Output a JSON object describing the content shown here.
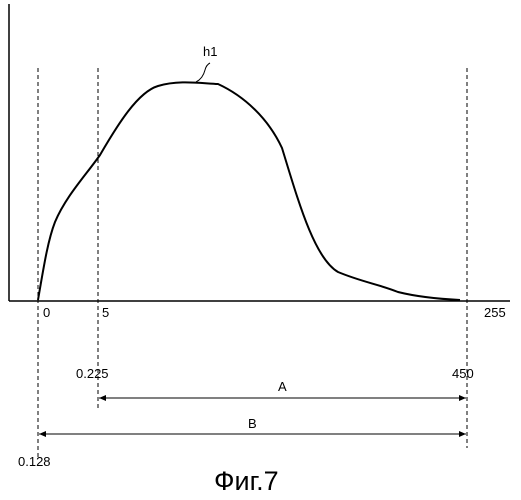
{
  "curve_label": "h1",
  "axis": {
    "tick_0": "0",
    "tick_5": "5",
    "tick_255": "255"
  },
  "scale": {
    "val_0128": "0.128",
    "val_0225": "0.225",
    "val_450": "450"
  },
  "ranges": {
    "a_label": "A",
    "b_label": "B"
  },
  "caption": "Фиг.7"
}
